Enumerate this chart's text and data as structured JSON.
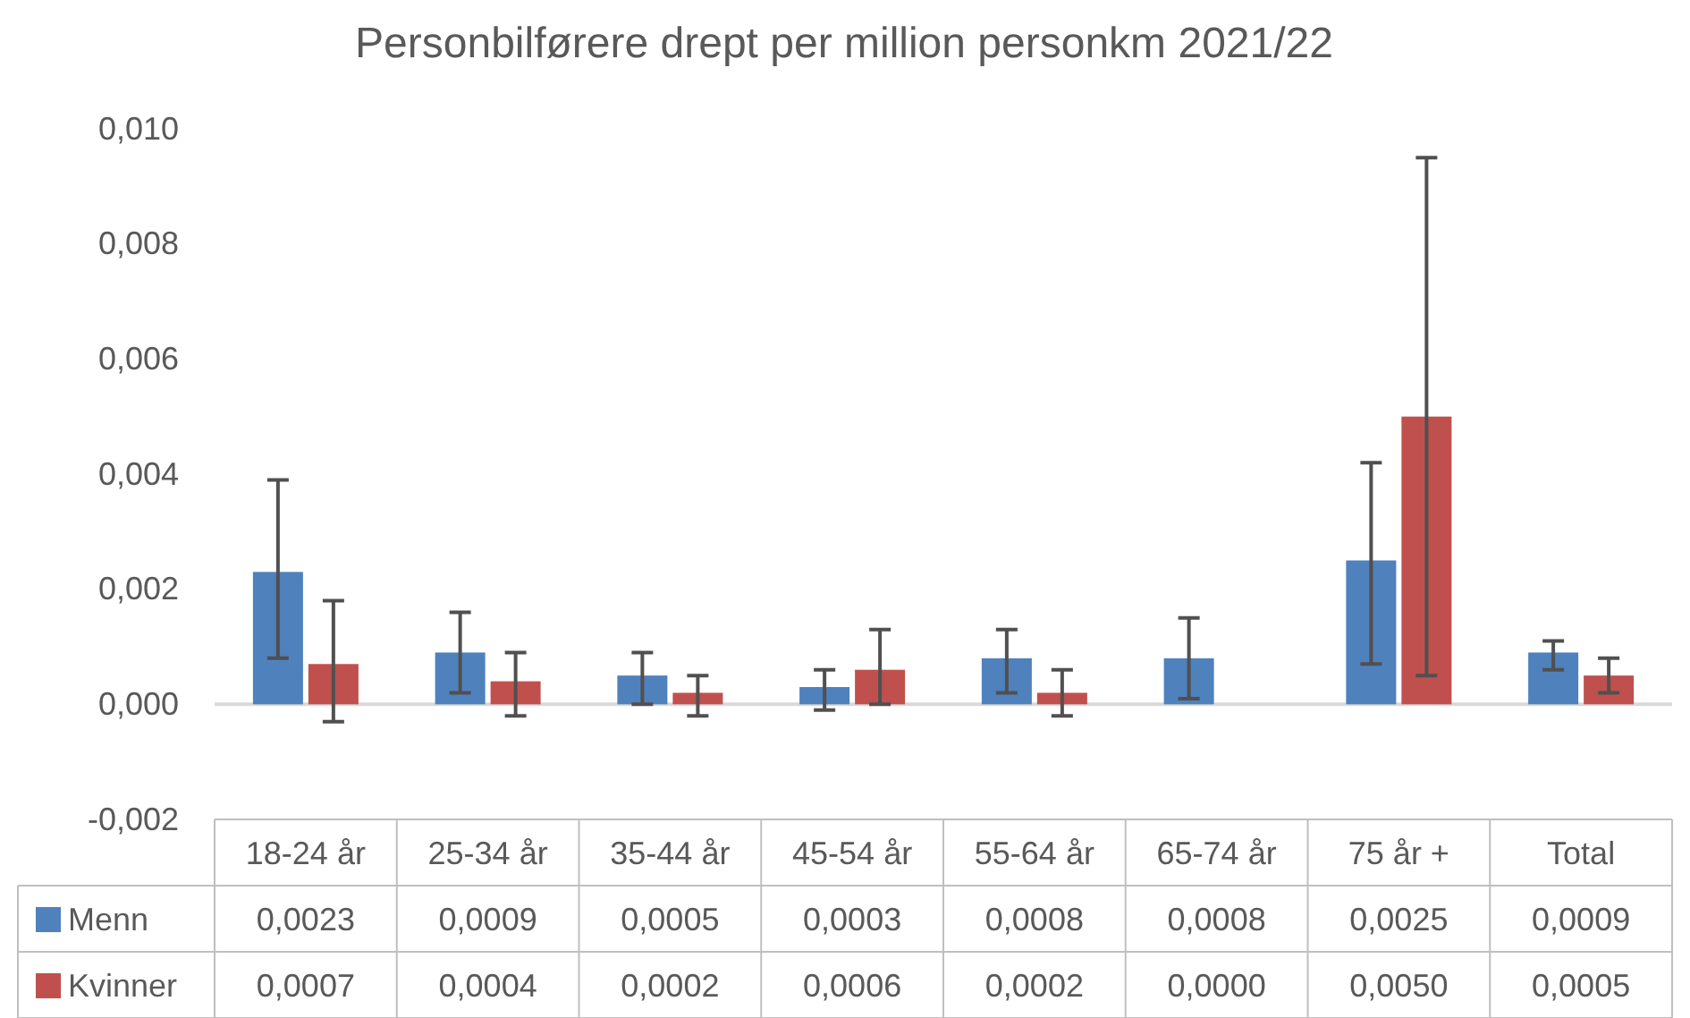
{
  "chart_data": {
    "type": "bar",
    "title": "Personbilførere drept per million personkm 2021/22",
    "categories": [
      "18-24 år",
      "25-34 år",
      "35-44 år",
      "45-54 år",
      "55-64 år",
      "65-74 år",
      "75 år +",
      "Total"
    ],
    "series": [
      {
        "name": "Menn",
        "color": "#4f81bd",
        "values": [
          0.0023,
          0.0009,
          0.0005,
          0.0003,
          0.0008,
          0.0008,
          0.0025,
          0.0009
        ],
        "value_labels": [
          "0,0023",
          "0,0009",
          "0,0005",
          "0,0003",
          "0,0008",
          "0,0008",
          "0,0025",
          "0,0009"
        ],
        "errors": [
          [
            0.0008,
            0.0039
          ],
          [
            0.0002,
            0.0016
          ],
          [
            0.0,
            0.0009
          ],
          [
            -0.0001,
            0.0006
          ],
          [
            0.0002,
            0.0013
          ],
          [
            0.0001,
            0.0015
          ],
          [
            0.0007,
            0.0042
          ],
          [
            0.0006,
            0.0011
          ]
        ]
      },
      {
        "name": "Kvinner",
        "color": "#c0504d",
        "values": [
          0.0007,
          0.0004,
          0.0002,
          0.0006,
          0.0002,
          0.0,
          0.005,
          0.0005
        ],
        "value_labels": [
          "0,0007",
          "0,0004",
          "0,0002",
          "0,0006",
          "0,0002",
          "0,0000",
          "0,0050",
          "0,0005"
        ],
        "errors": [
          [
            -0.0003,
            0.0018
          ],
          [
            -0.0002,
            0.0009
          ],
          [
            -0.0002,
            0.0005
          ],
          [
            0.0,
            0.0013
          ],
          [
            -0.0002,
            0.0006
          ],
          null,
          [
            0.0005,
            0.0095
          ],
          [
            0.0002,
            0.0008
          ]
        ]
      }
    ],
    "ylim": [
      -0.002,
      0.01
    ],
    "yticks": [
      {
        "value": -0.002,
        "label": "-0,002"
      },
      {
        "value": 0,
        "label": "0,000"
      },
      {
        "value": 0.002,
        "label": "0,002"
      },
      {
        "value": 0.004,
        "label": "0,004"
      },
      {
        "value": 0.006,
        "label": "0,006"
      },
      {
        "value": 0.008,
        "label": "0,008"
      },
      {
        "value": 0.01,
        "label": "0,010"
      }
    ],
    "legend": "bottom"
  }
}
